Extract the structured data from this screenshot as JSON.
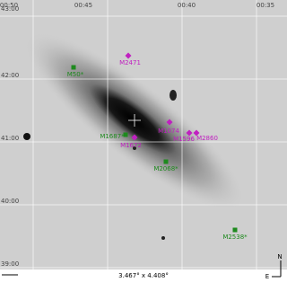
{
  "axes": {
    "ra_labels": [
      "00:50",
      "00:45",
      "00:40",
      "00:35"
    ],
    "dec_labels": [
      "43:00",
      "42:00",
      "41:00",
      "40:00",
      "39:00"
    ]
  },
  "markers": [
    {
      "label": "M50*",
      "color": "#1e8a1e"
    },
    {
      "label": "M2471",
      "color": "#c020c0"
    },
    {
      "label": "M1074",
      "color": "#c020c0"
    },
    {
      "label": "M1596",
      "color": "#c020c0"
    },
    {
      "label": "M2860",
      "color": "#c020c0"
    },
    {
      "label": "M1687*",
      "color": "#1e8a1e"
    },
    {
      "label": "M1672",
      "color": "#c020c0"
    },
    {
      "label": "M2068*",
      "color": "#1e8a1e"
    },
    {
      "label": "M2538*",
      "color": "#1e8a1e"
    }
  ],
  "footer": {
    "field_size": "3.467° x 4.408°",
    "compass_east": "E",
    "compass_north": "N"
  }
}
